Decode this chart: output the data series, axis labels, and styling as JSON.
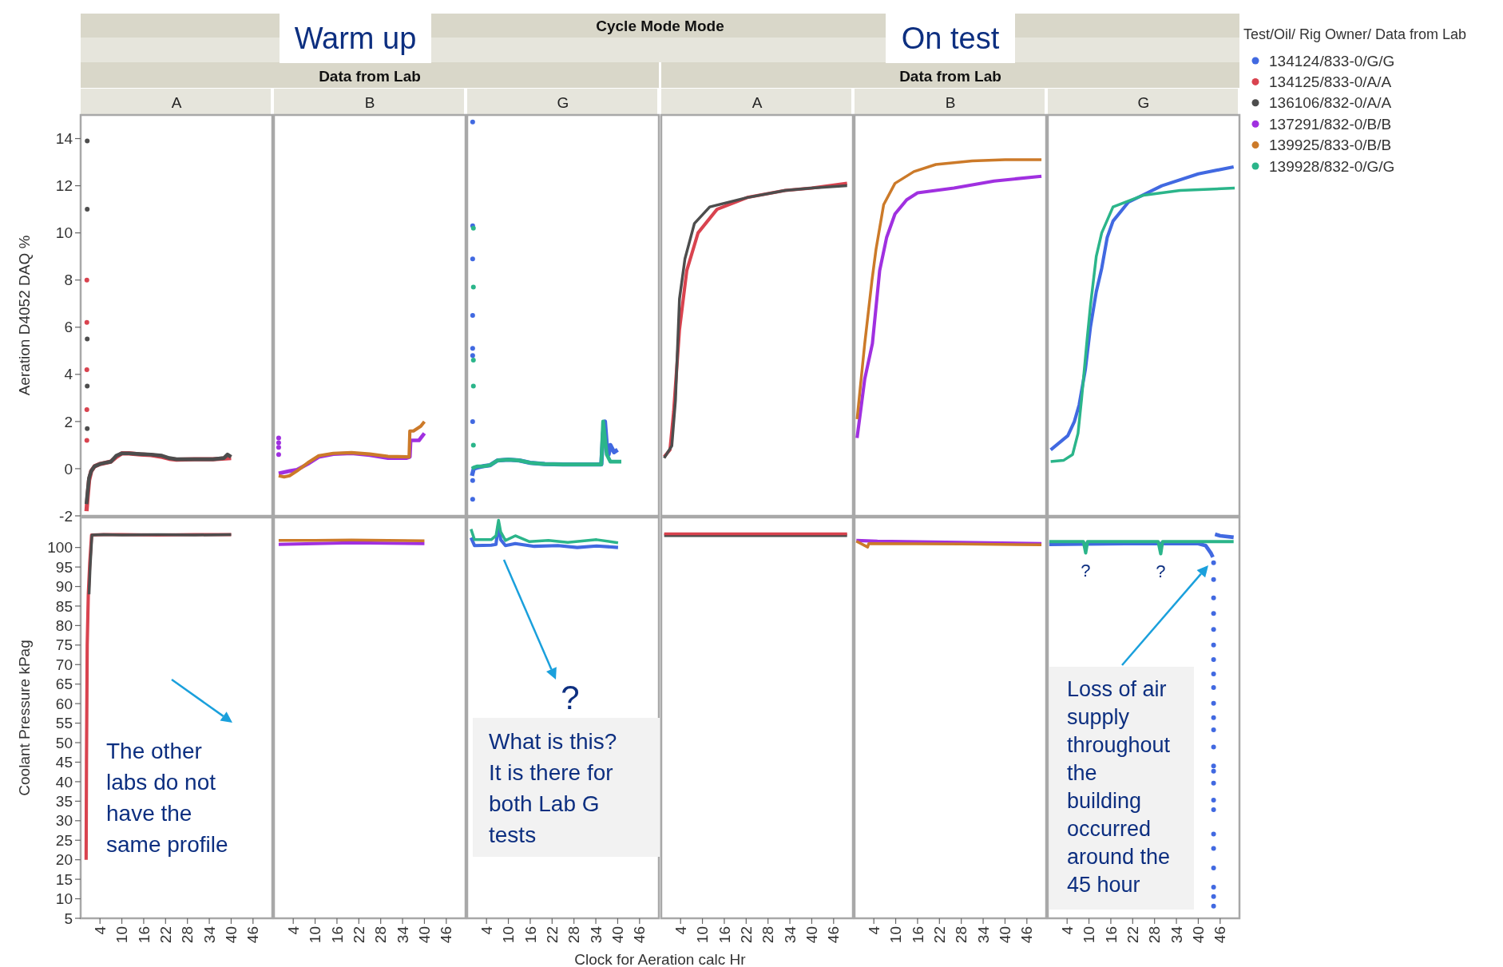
{
  "chart_data": [
    {
      "type": "line",
      "title": "A",
      "ylabel": "Aeration D4052 DAQ %",
      "legend": "right",
      "legend_title": "Test/Oil/ Rig Owner/ Data from Lab",
      "tick_labels": "y",
      "xlim": [
        -1.3,
        51.3
      ],
      "ylim": [
        -2,
        15
      ],
      "yticks": [
        -2,
        0,
        2,
        4,
        6,
        8,
        10,
        12,
        14
      ],
      "series": [
        {
          "name": "134125/833-0/A/A",
          "color": "#d9434f",
          "x": [
            0.3,
            0.6,
            1.0,
            1.6,
            2.5,
            4,
            5.5,
            7,
            8.5,
            10,
            12,
            15,
            18,
            21,
            23,
            25,
            30,
            35,
            40
          ],
          "values": [
            -1.8,
            -1.2,
            -0.5,
            -0.1,
            0.1,
            0.2,
            0.25,
            0.3,
            0.5,
            0.65,
            0.65,
            0.6,
            0.58,
            0.5,
            0.42,
            0.38,
            0.4,
            0.4,
            0.45
          ]
        },
        {
          "name": "136106/832-0/A/A",
          "color": "#4d4d4d",
          "x": [
            0.3,
            0.6,
            1.0,
            1.6,
            2.5,
            4,
            5.5,
            7,
            8.5,
            10,
            12,
            15,
            18,
            21,
            23,
            25,
            30,
            35,
            38,
            39,
            40
          ],
          "values": [
            -1.5,
            -1.0,
            -0.4,
            -0.1,
            0.1,
            0.2,
            0.25,
            0.3,
            0.55,
            0.65,
            0.65,
            0.62,
            0.6,
            0.55,
            0.45,
            0.4,
            0.4,
            0.4,
            0.45,
            0.6,
            0.5
          ]
        },
        {
          "type": "scatter",
          "color": "#4d4d4d",
          "x": [
            0.5,
            0.5,
            0.5,
            0.5,
            0.5
          ],
          "values": [
            13.9,
            11.0,
            5.5,
            3.5,
            1.7
          ]
        },
        {
          "type": "scatter",
          "color": "#d9434f",
          "x": [
            0.4,
            0.4,
            0.4,
            0.4,
            0.4
          ],
          "values": [
            8.0,
            6.2,
            4.2,
            2.5,
            1.2
          ]
        }
      ]
    },
    {
      "type": "line",
      "title": "B",
      "subtitle": "Data from Lab",
      "annotations": [
        "Warm up"
      ],
      "legend": "right",
      "tick_labels": false,
      "xlim": [
        -1.3,
        51.3
      ],
      "ylim": [
        -2,
        15
      ],
      "series": [
        {
          "name": "137291/832-0/B/B",
          "color": "#a030e0",
          "x": [
            0,
            3,
            5,
            8,
            11,
            15,
            20,
            25,
            30,
            35,
            36,
            36.2,
            38.5,
            40
          ],
          "values": [
            -0.2,
            -0.1,
            -0.05,
            0.2,
            0.5,
            0.62,
            0.65,
            0.58,
            0.45,
            0.45,
            0.5,
            1.2,
            1.2,
            1.5
          ]
        },
        {
          "name": "139925/833-0/B/B",
          "color": "#cc7a29",
          "x": [
            0,
            1.5,
            3,
            5,
            8,
            11,
            15,
            20,
            25,
            30,
            35.8,
            36,
            37,
            39,
            40
          ],
          "values": [
            -0.3,
            -0.35,
            -0.3,
            -0.1,
            0.25,
            0.55,
            0.65,
            0.68,
            0.62,
            0.52,
            0.5,
            1.6,
            1.6,
            1.8,
            2.0
          ]
        },
        {
          "type": "scatter",
          "color": "#a030e0",
          "x": [
            0,
            0,
            0,
            0
          ],
          "values": [
            1.3,
            1.1,
            0.9,
            0.6
          ]
        }
      ]
    },
    {
      "type": "line",
      "title": "G",
      "annotations": [
        "Cycle Mode Mode"
      ],
      "legend": "right",
      "tick_labels": false,
      "xlim": [
        -1.3,
        51.3
      ],
      "ylim": [
        -2,
        15
      ],
      "series": [
        {
          "name": "134124/833-0/G/G",
          "color": "#4169e1",
          "x": [
            0,
            0.5,
            1.5,
            3,
            5,
            7,
            10,
            13,
            16,
            20,
            25,
            30,
            35.5,
            36,
            36.5,
            37,
            37.5,
            38,
            39,
            40
          ],
          "values": [
            -0.3,
            0.0,
            0.05,
            0.1,
            0.15,
            0.35,
            0.38,
            0.35,
            0.25,
            0.2,
            0.18,
            0.18,
            0.18,
            1.5,
            2.0,
            1.0,
            0.6,
            1.0,
            0.7,
            0.8
          ]
        },
        {
          "name": "139928/832-0/G/G",
          "color": "#2bb58a",
          "x": [
            0,
            0.5,
            1.5,
            3,
            5,
            7,
            10,
            13,
            16,
            20,
            25,
            30,
            35.5,
            36,
            37,
            38,
            41
          ],
          "values": [
            0.0,
            0.05,
            0.1,
            0.1,
            0.15,
            0.35,
            0.38,
            0.35,
            0.25,
            0.2,
            0.18,
            0.18,
            0.18,
            2.0,
            0.6,
            0.3,
            0.3
          ]
        },
        {
          "type": "scatter",
          "color": "#4169e1",
          "x": [
            0.2,
            0.2,
            0.2,
            0.2,
            0.2,
            0.2,
            0.2,
            0.2,
            0.2
          ],
          "values": [
            14.7,
            10.3,
            8.9,
            6.5,
            5.1,
            4.8,
            2.0,
            -0.5,
            -1.3
          ]
        },
        {
          "type": "scatter",
          "color": "#2bb58a",
          "x": [
            0.4,
            0.4,
            0.4,
            0.4,
            0.4
          ],
          "values": [
            10.2,
            7.7,
            4.6,
            3.5,
            1.0
          ]
        }
      ]
    },
    {
      "type": "line",
      "title": "A",
      "tick_labels": false,
      "xlim": [
        -1.3,
        51.3
      ],
      "ylim": [
        -2,
        15
      ],
      "series": [
        {
          "color": "#d9434f",
          "x": [
            -0.5,
            1.1,
            2.1,
            3.7,
            5.7,
            8.8,
            14,
            22.3,
            32.7,
            40,
            49.7
          ],
          "values": [
            0.5,
            0.8,
            2.4,
            5.9,
            8.4,
            10.0,
            11.0,
            11.5,
            11.8,
            11.9,
            12.1
          ]
        },
        {
          "color": "#4d4d4d",
          "x": [
            -0.5,
            1.6,
            2.6,
            3.7,
            5.2,
            7.8,
            12,
            22.3,
            32.7,
            40,
            49.7
          ],
          "values": [
            0.45,
            0.97,
            2.9,
            7.2,
            8.9,
            10.4,
            11.1,
            11.5,
            11.8,
            11.9,
            12.0
          ]
        }
      ]
    },
    {
      "type": "line",
      "title": "B",
      "subtitle": "Data from Lab",
      "annotations": [
        "On test"
      ],
      "tick_labels": false,
      "xlim": [
        -1.3,
        51.3
      ],
      "ylim": [
        -2,
        15
      ],
      "series": [
        {
          "color": "#a030e0",
          "x": [
            -0.6,
            1.5,
            3.6,
            5.6,
            7.5,
            9.8,
            13,
            16,
            26,
            37,
            50
          ],
          "values": [
            1.3,
            3.8,
            5.3,
            8.4,
            9.8,
            10.8,
            11.4,
            11.7,
            11.9,
            12.2,
            12.4
          ]
        },
        {
          "color": "#cc7a29",
          "x": [
            -0.6,
            1.5,
            3.5,
            4.6,
            6.7,
            9.8,
            15,
            21,
            31,
            40,
            50
          ],
          "values": [
            2.1,
            5.3,
            8.0,
            9.3,
            11.2,
            12.1,
            12.6,
            12.9,
            13.05,
            13.1,
            13.1
          ]
        }
      ]
    },
    {
      "type": "line",
      "title": "G",
      "tick_labels": false,
      "xlim": [
        -1.3,
        51.3
      ],
      "ylim": [
        -2,
        15
      ],
      "series": [
        {
          "color": "#4169e1",
          "x": [
            -0.5,
            4.2,
            6,
            7.3,
            9,
            10.4,
            12,
            13.5,
            15,
            16.6,
            20.8,
            30,
            40,
            49.7
          ],
          "values": [
            0.8,
            1.4,
            2.0,
            2.7,
            4.2,
            6.0,
            7.5,
            8.5,
            9.8,
            10.5,
            11.3,
            12.0,
            12.5,
            12.8
          ]
        },
        {
          "color": "#2bb58a",
          "x": [
            -0.5,
            3,
            5.5,
            7,
            8,
            9.5,
            10.4,
            12,
            13.5,
            16.6,
            25,
            35,
            50
          ],
          "values": [
            0.3,
            0.35,
            0.6,
            1.5,
            3.0,
            5.5,
            6.9,
            9.0,
            10.0,
            11.1,
            11.6,
            11.8,
            11.9
          ]
        }
      ]
    },
    {
      "type": "line",
      "ylabel": "Coolant Pressure kPag",
      "annotations": [
        "The other\nlabs do not\nhave the\nsame profile"
      ],
      "xlim": [
        -1.3,
        51.3
      ],
      "xticks": [
        4,
        10,
        16,
        22,
        28,
        34,
        40,
        46
      ],
      "ylim": [
        5,
        107.7
      ],
      "yticks": [
        5,
        10,
        15,
        20,
        25,
        30,
        35,
        40,
        45,
        50,
        55,
        60,
        65,
        70,
        75,
        80,
        85,
        90,
        95,
        100
      ],
      "series": [
        {
          "color": "#d9434f",
          "x": [
            0.2,
            0.3,
            0.5,
            0.8,
            1.2,
            1.7,
            5,
            10,
            20,
            30,
            40
          ],
          "values": [
            20,
            45,
            75,
            88,
            96,
            103.2,
            103.3,
            103.3,
            103.2,
            103.3,
            103.3
          ]
        },
        {
          "color": "#4d4d4d",
          "x": [
            1.0,
            1.3,
            1.8,
            5,
            10,
            20,
            30,
            40
          ],
          "values": [
            88,
            95,
            103.2,
            103.3,
            103.2,
            103.3,
            103.2,
            103.3
          ]
        }
      ]
    },
    {
      "type": "line",
      "tick_labels": "x",
      "xlim": [
        -1.3,
        51.3
      ],
      "xticks": [
        4,
        10,
        16,
        22,
        28,
        34,
        40,
        46
      ],
      "ylim": [
        5,
        107.7
      ],
      "series": [
        {
          "color": "#a030e0",
          "x": [
            0,
            10,
            20,
            30,
            40
          ],
          "values": [
            100.8,
            101.0,
            101.2,
            101.1,
            101.0
          ]
        },
        {
          "color": "#cc7a29",
          "x": [
            0,
            10,
            20,
            30,
            40
          ],
          "values": [
            101.8,
            101.8,
            101.9,
            101.8,
            101.7
          ]
        }
      ]
    },
    {
      "type": "line",
      "xlabel": "Clock for Aeration calc Hr",
      "tick_labels": "x",
      "annotations": [
        "?",
        "What is this?\nIt is there for\nboth Lab G\ntests"
      ],
      "xlim": [
        -1.3,
        51.3
      ],
      "xticks": [
        4,
        10,
        16,
        22,
        28,
        34,
        40,
        46
      ],
      "ylim": [
        5,
        107.7
      ],
      "series": [
        {
          "color": "#4169e1",
          "x": [
            -0.25,
            0.7,
            5.3,
            6.6,
            7.3,
            7.9,
            9.2,
            11.9,
            17.1,
            23.6,
            28.9,
            34.2,
            40.1
          ],
          "values": [
            102.5,
            100.5,
            100.6,
            100.8,
            106,
            102,
            100.5,
            101,
            100.3,
            100.5,
            100.0,
            100.4,
            100.0
          ]
        },
        {
          "color": "#2bb58a",
          "x": [
            -0.25,
            0.7,
            5.3,
            6.6,
            7.3,
            7.9,
            9.2,
            11.9,
            15.8,
            21,
            26.3,
            34.2,
            40.1
          ],
          "values": [
            104.7,
            102,
            102,
            103,
            107,
            104,
            101.8,
            103,
            101.5,
            101.8,
            101.3,
            102,
            101.2
          ]
        }
      ]
    },
    {
      "type": "line",
      "tick_labels": "x",
      "xlim": [
        -1.3,
        51.3
      ],
      "xticks": [
        4,
        10,
        16,
        22,
        28,
        34,
        40,
        46
      ],
      "ylim": [
        5,
        107.7
      ],
      "series": [
        {
          "color": "#4d4d4d",
          "x": [
            -0.5,
            10,
            20,
            30,
            40,
            49.7
          ],
          "values": [
            103.1,
            103.1,
            103.1,
            103.1,
            103.1,
            103.1
          ]
        },
        {
          "color": "#d9434f",
          "x": [
            -0.5,
            10,
            20,
            30,
            40,
            49.7
          ],
          "values": [
            103.5,
            103.5,
            103.5,
            103.5,
            103.5,
            103.5
          ]
        }
      ]
    },
    {
      "type": "line",
      "tick_labels": "x",
      "xlim": [
        -1.3,
        51.3
      ],
      "xticks": [
        4,
        10,
        16,
        22,
        28,
        34,
        40,
        46
      ],
      "ylim": [
        5,
        107.7
      ],
      "series": [
        {
          "color": "#a030e0",
          "x": [
            -0.8,
            5,
            20,
            35,
            50
          ],
          "values": [
            101.8,
            101.6,
            101.4,
            101.2,
            101.0
          ]
        },
        {
          "color": "#cc7a29",
          "x": [
            -0.8,
            2.3,
            2.6,
            28,
            50
          ],
          "values": [
            101.6,
            100.1,
            101.0,
            100.9,
            100.7
          ]
        }
      ]
    },
    {
      "type": "line",
      "tick_labels": "x",
      "annotations": [
        {
          "text": "?",
          "x": 9.1,
          "y": 98.6
        },
        {
          "text": "?",
          "x": 29.7,
          "y": 98.4
        },
        "Loss of air\nsupply\nthroughout\nthe\nbuilding\noccurred\naround the\n45 hour"
      ],
      "xlim": [
        -1.3,
        51.3
      ],
      "xticks": [
        4,
        10,
        16,
        22,
        28,
        34,
        40,
        46
      ],
      "ylim": [
        5,
        107.7
      ],
      "series": [
        {
          "color": "#4169e1",
          "x": [
            -0.9,
            9,
            20,
            40,
            42,
            43.5,
            44,
            44.3,
            44.6,
            46,
            49.7
          ],
          "values": [
            100.8,
            100.9,
            101,
            101,
            100.5,
            98.5,
            97.5,
            null,
            103.4,
            103,
            102.6
          ]
        },
        {
          "color": "#2bb58a",
          "x": [
            -0.9,
            8.5,
            9.1,
            9.6,
            29,
            29.7,
            30.2,
            49.7
          ],
          "values": [
            101.5,
            101.5,
            98.6,
            101.5,
            101.5,
            98.4,
            101.5,
            101.5
          ]
        },
        {
          "type": "scatter",
          "color": "#4169e1",
          "x": [
            44.2,
            44.2,
            44.2,
            44.2,
            44.2,
            44.2,
            44.2,
            44.2,
            44.2,
            44.2,
            44.2,
            44.2,
            44.2,
            44.2,
            44.2,
            44.2,
            44.2,
            44.2,
            44.2,
            44.2,
            44.2,
            44.2,
            44.2,
            44.2
          ],
          "values": [
            96.1,
            91.8,
            87.1,
            83.1,
            79.0,
            75.0,
            71.3,
            67.6,
            64.1,
            60.1,
            56.4,
            53.3,
            48.9,
            44.0,
            42.7,
            39.6,
            35.3,
            32.8,
            26.6,
            22.9,
            17.9,
            13.0,
            10.6,
            8.1
          ]
        }
      ]
    }
  ]
}
